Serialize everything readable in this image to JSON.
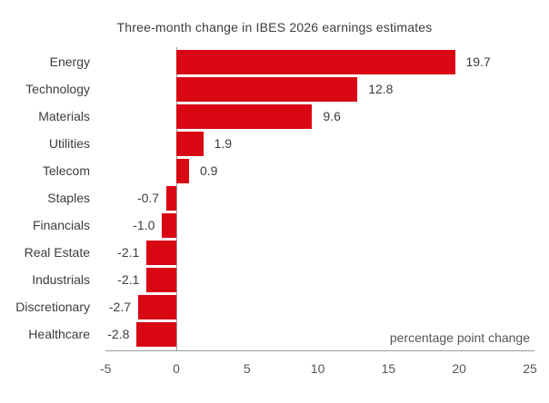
{
  "chart_data": {
    "type": "bar",
    "orientation": "horizontal",
    "title": "Three-month change in IBES 2026 earnings estimates",
    "categories": [
      "Energy",
      "Technology",
      "Materials",
      "Utilities",
      "Telecom",
      "Staples",
      "Financials",
      "Real Estate",
      "Industrials",
      "Discretionary",
      "Healthcare"
    ],
    "values": [
      19.7,
      12.8,
      9.6,
      1.9,
      0.9,
      -0.7,
      -1.0,
      -2.1,
      -2.1,
      -2.7,
      -2.8
    ],
    "value_labels": [
      "19.7",
      "12.8",
      "9.6",
      "1.9",
      "0.9",
      "-0.7",
      "-1.0",
      "-2.1",
      "-2.1",
      "-2.7",
      "-2.8"
    ],
    "xlabel": "percentage point change",
    "ylabel": "",
    "xlim": [
      -5,
      25
    ],
    "x_ticks": [
      "-5",
      "0",
      "5",
      "10",
      "15",
      "20",
      "25"
    ],
    "x_tick_values": [
      -5,
      0,
      5,
      10,
      15,
      20,
      25
    ],
    "grid": false,
    "legend": "none",
    "bar_color": "#d90613",
    "label_color": "#3d3d3d",
    "axis_text_color": "#555555",
    "axis_line_color": "#9b9b9b"
  }
}
